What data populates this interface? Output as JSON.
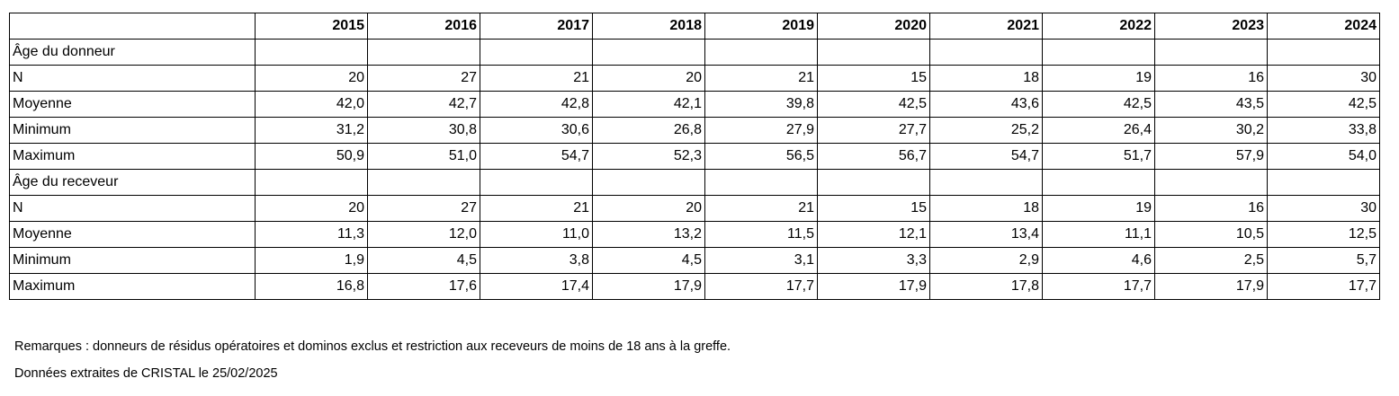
{
  "years": [
    "2015",
    "2016",
    "2017",
    "2018",
    "2019",
    "2020",
    "2021",
    "2022",
    "2023",
    "2024"
  ],
  "sections": [
    {
      "title": "Âge du donneur",
      "rows": [
        {
          "label": "N",
          "values": [
            "20",
            "27",
            "21",
            "20",
            "21",
            "15",
            "18",
            "19",
            "16",
            "30"
          ]
        },
        {
          "label": "Moyenne",
          "values": [
            "42,0",
            "42,7",
            "42,8",
            "42,1",
            "39,8",
            "42,5",
            "43,6",
            "42,5",
            "43,5",
            "42,5"
          ]
        },
        {
          "label": "Minimum",
          "values": [
            "31,2",
            "30,8",
            "30,6",
            "26,8",
            "27,9",
            "27,7",
            "25,2",
            "26,4",
            "30,2",
            "33,8"
          ]
        },
        {
          "label": "Maximum",
          "values": [
            "50,9",
            "51,0",
            "54,7",
            "52,3",
            "56,5",
            "56,7",
            "54,7",
            "51,7",
            "57,9",
            "54,0"
          ]
        }
      ]
    },
    {
      "title": "Âge du receveur",
      "rows": [
        {
          "label": "N",
          "values": [
            "20",
            "27",
            "21",
            "20",
            "21",
            "15",
            "18",
            "19",
            "16",
            "30"
          ]
        },
        {
          "label": "Moyenne",
          "values": [
            "11,3",
            "12,0",
            "11,0",
            "13,2",
            "11,5",
            "12,1",
            "13,4",
            "11,1",
            "10,5",
            "12,5"
          ]
        },
        {
          "label": "Minimum",
          "values": [
            "1,9",
            "4,5",
            "3,8",
            "4,5",
            "3,1",
            "3,3",
            "2,9",
            "4,6",
            "2,5",
            "5,7"
          ]
        },
        {
          "label": "Maximum",
          "values": [
            "16,8",
            "17,6",
            "17,4",
            "17,9",
            "17,7",
            "17,9",
            "17,8",
            "17,7",
            "17,9",
            "17,7"
          ]
        }
      ]
    }
  ],
  "notes": [
    "Remarques : donneurs de résidus opératoires et dominos exclus et restriction aux receveurs de moins de 18 ans à la greffe.",
    "Données extraites de CRISTAL le 25/02/2025"
  ]
}
